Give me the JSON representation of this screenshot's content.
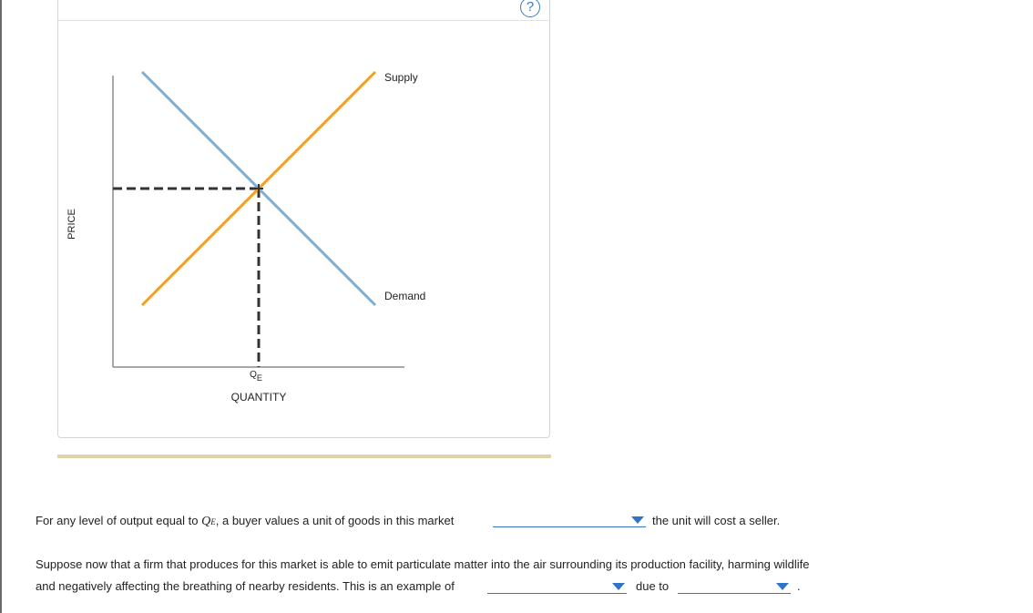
{
  "help": {
    "label": "?"
  },
  "chart_data": {
    "type": "line",
    "xlabel": "QUANTITY",
    "ylabel": "PRICE",
    "equilibrium_label": {
      "base": "Q",
      "sub": "E"
    },
    "series": [
      {
        "name": "Supply",
        "color": "#f5a01a",
        "x": [
          1,
          9
        ],
        "y": [
          1,
          9
        ]
      },
      {
        "name": "Demand",
        "color": "#7fadd4",
        "x": [
          1,
          9
        ],
        "y": [
          9,
          1
        ]
      }
    ],
    "equilibrium": {
      "x": 5,
      "y": 5
    },
    "xlim": [
      0,
      10
    ],
    "ylim": [
      0,
      10
    ]
  },
  "question1": {
    "prefix": "For any level of output equal to ",
    "var_base": "Q",
    "var_sub": "E",
    "middle": ", a buyer values a unit of goods in this market",
    "suffix": "the unit will cost a seller.",
    "dropdown_value": ""
  },
  "question2": {
    "line1": "Suppose now that a firm that produces for this market is able to emit particulate matter into the air surrounding its production facility, harming wildlife",
    "line2": "and negatively affecting the breathing of nearby residents. This is an example of",
    "due_to": "due to",
    "end": ".",
    "dropdown1_value": "",
    "dropdown2_value": ""
  }
}
